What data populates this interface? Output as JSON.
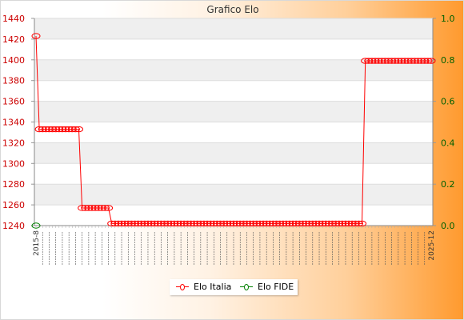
{
  "chart_data": {
    "type": "line",
    "title": "Grafico Elo",
    "ylim": [
      1240,
      1440
    ],
    "y_ticks": [
      1240,
      1260,
      1280,
      1300,
      1320,
      1340,
      1360,
      1380,
      1400,
      1420,
      1440
    ],
    "y2lim": [
      0,
      1
    ],
    "y2_ticks": [
      "0.0",
      "0.2",
      "0.4",
      "0.6",
      "0.8",
      "1.0"
    ],
    "grid": true,
    "legend_position": "bottom",
    "x_tick_labels_note": "illegible overlapping date labels",
    "x_first_label": "2015-8",
    "x_last_label": "2025-12",
    "series": [
      {
        "name": "Elo Italia",
        "color": "#ff0000",
        "segments": [
          {
            "count": 1,
            "value": 1423
          },
          {
            "count": 13,
            "value": 1333
          },
          {
            "count": 9,
            "value": 1257
          },
          {
            "count": 77,
            "value": 1242
          },
          {
            "count": 21,
            "value": 1399
          }
        ]
      },
      {
        "name": "Elo FIDE",
        "color": "#008000",
        "segments": [
          {
            "count": 1,
            "value": 1240
          }
        ]
      }
    ]
  },
  "colors": {
    "axis_left": "#cc0000",
    "axis_right": "#006000",
    "band": "#efefef"
  }
}
